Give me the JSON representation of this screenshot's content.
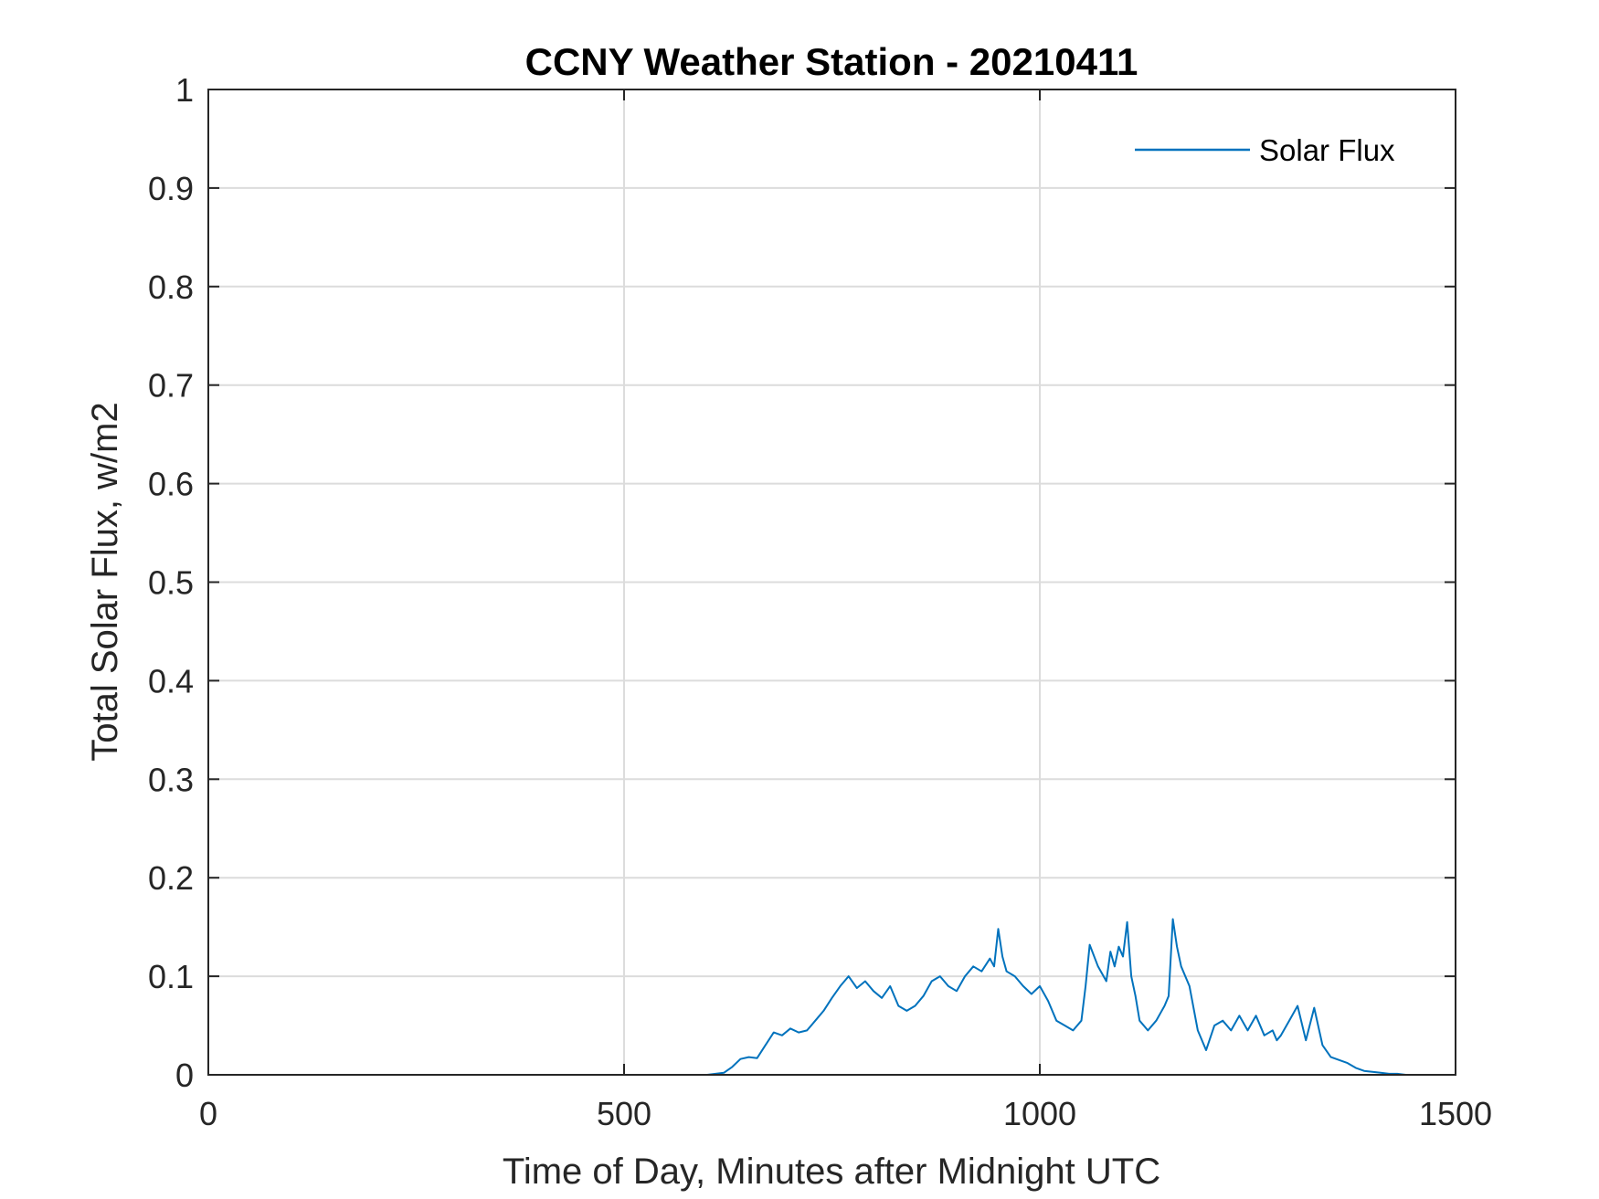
{
  "chart_data": {
    "type": "line",
    "title": "CCNY Weather Station - 20210411",
    "xlabel": "Time of Day, Minutes after Midnight UTC",
    "ylabel": "Total Solar Flux, w/m2",
    "xlim": [
      0,
      1500
    ],
    "ylim": [
      0,
      1
    ],
    "xticks": [
      0,
      500,
      1000,
      1500
    ],
    "yticks": [
      0,
      0.1,
      0.2,
      0.3,
      0.4,
      0.5,
      0.6,
      0.7,
      0.8,
      0.9,
      1
    ],
    "xtick_labels": [
      "0",
      "500",
      "1000",
      "1500"
    ],
    "ytick_labels": [
      "0",
      "0.1",
      "0.2",
      "0.3",
      "0.4",
      "0.5",
      "0.6",
      "0.7",
      "0.8",
      "0.9",
      "1"
    ],
    "grid": true,
    "legend_position": "top-right",
    "colors": {
      "series": "#0072BD",
      "grid": "#DCDCDC",
      "axis": "#262626"
    },
    "series": [
      {
        "name": "Solar Flux",
        "x": [
          0,
          100,
          200,
          300,
          400,
          500,
          600,
          620,
          630,
          640,
          650,
          660,
          670,
          680,
          690,
          700,
          710,
          720,
          730,
          740,
          750,
          760,
          770,
          780,
          790,
          800,
          810,
          820,
          830,
          840,
          850,
          860,
          870,
          880,
          890,
          900,
          910,
          920,
          930,
          940,
          945,
          950,
          955,
          960,
          970,
          980,
          990,
          1000,
          1010,
          1020,
          1030,
          1040,
          1050,
          1055,
          1060,
          1070,
          1080,
          1085,
          1090,
          1095,
          1100,
          1105,
          1110,
          1115,
          1120,
          1130,
          1140,
          1150,
          1155,
          1160,
          1165,
          1170,
          1180,
          1190,
          1200,
          1210,
          1220,
          1230,
          1240,
          1250,
          1260,
          1270,
          1280,
          1285,
          1290,
          1300,
          1310,
          1320,
          1330,
          1340,
          1350,
          1360,
          1370,
          1380,
          1390,
          1400,
          1410,
          1420,
          1430,
          1440
        ],
        "y": [
          0,
          0,
          0,
          0,
          0,
          0,
          0,
          0.002,
          0.008,
          0.016,
          0.018,
          0.017,
          0.03,
          0.043,
          0.04,
          0.047,
          0.043,
          0.045,
          0.055,
          0.065,
          0.078,
          0.09,
          0.1,
          0.088,
          0.095,
          0.085,
          0.078,
          0.09,
          0.07,
          0.065,
          0.07,
          0.08,
          0.095,
          0.1,
          0.09,
          0.085,
          0.1,
          0.11,
          0.105,
          0.118,
          0.11,
          0.148,
          0.12,
          0.105,
          0.1,
          0.09,
          0.082,
          0.09,
          0.075,
          0.055,
          0.05,
          0.045,
          0.055,
          0.09,
          0.132,
          0.11,
          0.095,
          0.125,
          0.11,
          0.13,
          0.12,
          0.155,
          0.1,
          0.08,
          0.055,
          0.045,
          0.055,
          0.07,
          0.08,
          0.158,
          0.13,
          0.11,
          0.09,
          0.045,
          0.025,
          0.05,
          0.055,
          0.045,
          0.06,
          0.045,
          0.06,
          0.04,
          0.045,
          0.035,
          0.04,
          0.055,
          0.07,
          0.035,
          0.068,
          0.03,
          0.018,
          0.015,
          0.012,
          0.007,
          0.004,
          0.003,
          0.002,
          0.001,
          0.001,
          0
        ]
      }
    ]
  }
}
